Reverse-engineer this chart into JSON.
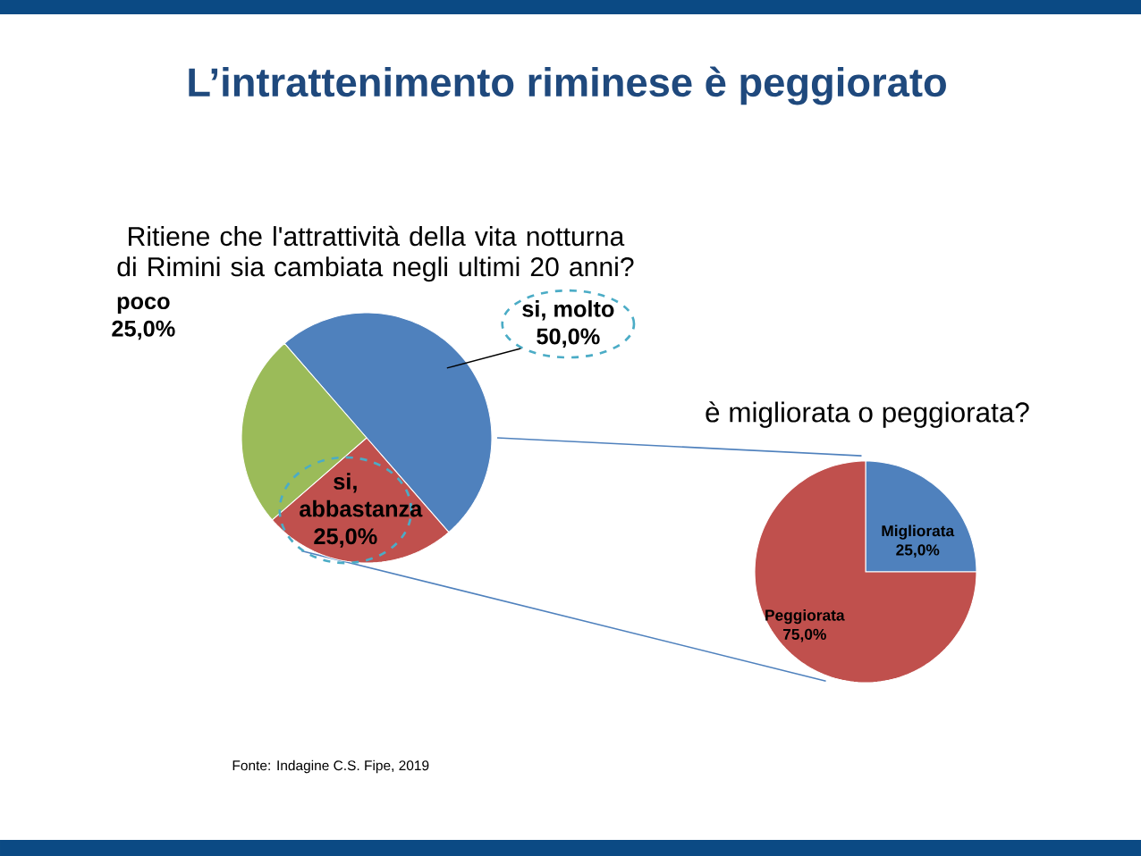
{
  "chart_data": [
    {
      "type": "pie",
      "title": "L’intrattenimento riminese è peggiorato",
      "subtitle": "Ritiene che l'attrattività della vita notturna di Rimini sia cambiata negli ultimi 20 anni?",
      "categories": [
        "si, molto",
        "si, abbastanza",
        "poco"
      ],
      "values": [
        50,
        25,
        25
      ],
      "value_labels": [
        "50,0%",
        "25,0%",
        "25,0%"
      ],
      "colors": [
        "#4f81bd",
        "#c0504d",
        "#9bbb59"
      ],
      "annotations": [
        "Fonte: Indagine C.S. Fipe, 2019"
      ]
    },
    {
      "type": "pie",
      "title": "è migliorata o peggiorata?",
      "categories": [
        "Migliorata",
        "Peggiorata"
      ],
      "values": [
        25,
        75
      ],
      "value_labels": [
        "25,0%",
        "75,0%"
      ],
      "colors": [
        "#4f81bd",
        "#c0504d"
      ]
    }
  ]
}
